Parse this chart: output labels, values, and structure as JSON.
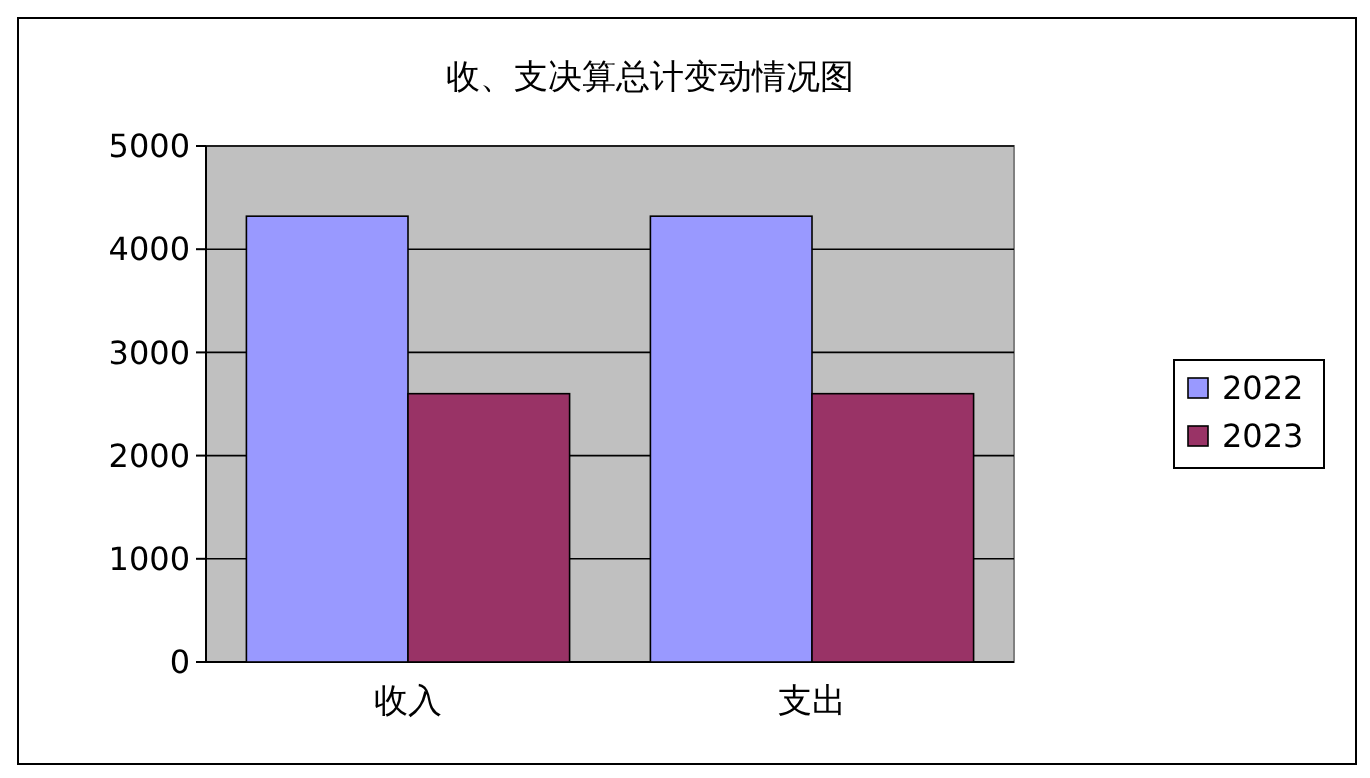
{
  "chart_data": {
    "type": "bar",
    "title": "收、支决算总计变动情况图",
    "categories": [
      "收入",
      "支出"
    ],
    "series": [
      {
        "name": "2022",
        "color": "#9999ff",
        "values": [
          4320,
          4320
        ]
      },
      {
        "name": "2023",
        "color": "#993366",
        "values": [
          2600,
          2600
        ]
      }
    ],
    "ylim": [
      0,
      5000
    ],
    "yticks": [
      0,
      1000,
      2000,
      3000,
      4000,
      5000
    ],
    "grid": "y",
    "legend": "right"
  }
}
